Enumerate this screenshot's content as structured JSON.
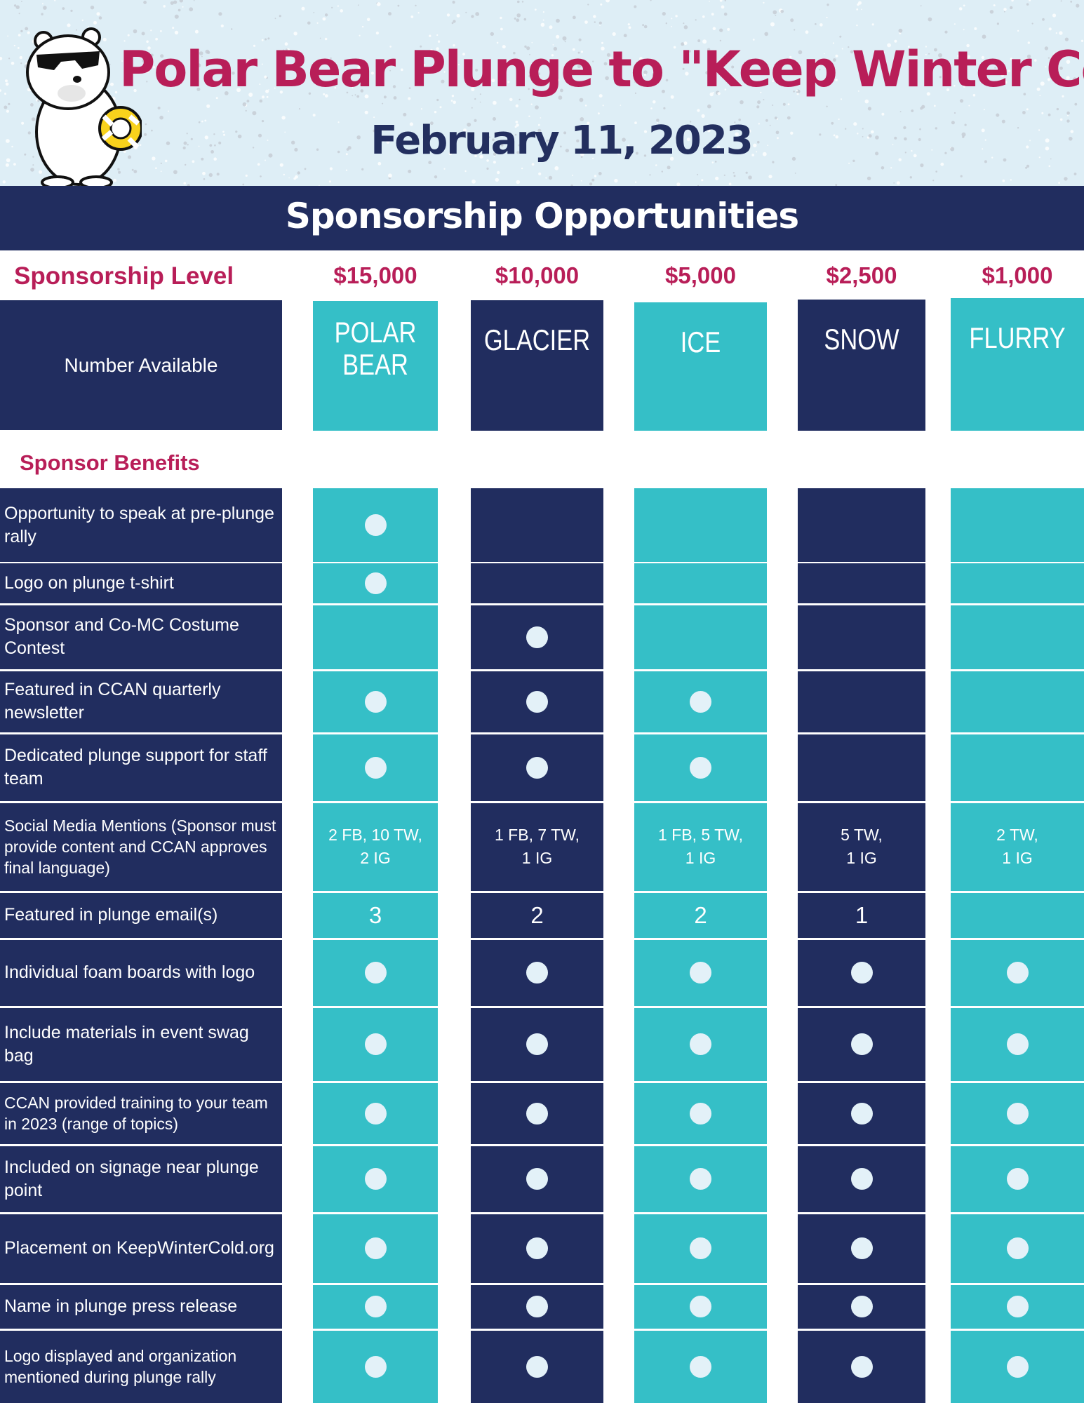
{
  "header": {
    "title": "Polar Bear Plunge to \"Keep Winter Cold\"",
    "date": "February 11, 2023",
    "colors": {
      "background": "#deeef6",
      "title": "#b81e58",
      "date": "#232f5f"
    },
    "mascot_icon": "polar-bear-with-sunglasses-and-float-icon"
  },
  "banner": {
    "title": "Sponsorship Opportunities"
  },
  "levels_header": {
    "label": "Sponsorship Level"
  },
  "number_available": {
    "label": "Number Available"
  },
  "levels": [
    {
      "price": "$15,000",
      "name_lines": [
        "POLAR",
        "BEAR"
      ],
      "color": "#35bfc7"
    },
    {
      "price": "$10,000",
      "name_lines": [
        "GLACIER"
      ],
      "color": "#212d5f"
    },
    {
      "price": "$5,000",
      "name_lines": [
        "ICE"
      ],
      "color": "#35bfc7"
    },
    {
      "price": "$2,500",
      "name_lines": [
        "SNOW"
      ],
      "color": "#212d5f"
    },
    {
      "price": "$1,000",
      "name_lines": [
        "FLURRY"
      ],
      "color": "#35bfc7"
    }
  ],
  "benefits_header": {
    "label": "Sponsor Benefits"
  },
  "benefits": [
    {
      "label": "Opportunity to speak at pre-plunge rally",
      "cells": [
        true,
        false,
        false,
        false,
        false
      ]
    },
    {
      "label": "Logo on plunge t-shirt",
      "cells": [
        true,
        false,
        false,
        false,
        false
      ]
    },
    {
      "label": "Sponsor and Co-MC Costume Contest",
      "cells": [
        false,
        true,
        false,
        false,
        false
      ]
    },
    {
      "label": "Featured in CCAN quarterly newsletter",
      "cells": [
        true,
        true,
        true,
        false,
        false
      ]
    },
    {
      "label": "Dedicated plunge support for staff team",
      "cells": [
        true,
        true,
        true,
        false,
        false
      ]
    },
    {
      "label": "Social Media Mentions (Sponsor must provide content and CCAN approves final language)",
      "cells": [
        "2 FB, 10 TW,\n2 IG",
        "1 FB, 7 TW,\n1 IG",
        "1 FB, 5 TW,\n1 IG",
        "5 TW,\n1 IG",
        "2 TW,\n1 IG"
      ]
    },
    {
      "label": "Featured in plunge email(s)",
      "cells": [
        "3",
        "2",
        "2",
        "1",
        false
      ]
    },
    {
      "label": "Individual foam boards with logo",
      "cells": [
        true,
        true,
        true,
        true,
        true
      ]
    },
    {
      "label": "Include materials in event swag bag",
      "cells": [
        true,
        true,
        true,
        true,
        true
      ]
    },
    {
      "label": "CCAN provided training to your team in 2023 (range of topics)",
      "cells": [
        true,
        true,
        true,
        true,
        true
      ]
    },
    {
      "label": "Included on signage near plunge point",
      "cells": [
        true,
        true,
        true,
        true,
        true
      ]
    },
    {
      "label": "Placement on KeepWinterCold.org",
      "cells": [
        true,
        true,
        true,
        true,
        true
      ]
    },
    {
      "label": "Name in plunge press release",
      "cells": [
        true,
        true,
        true,
        true,
        true
      ]
    },
    {
      "label": "Logo displayed and organization mentioned during plunge rally",
      "cells": [
        true,
        true,
        true,
        true,
        true
      ]
    }
  ]
}
